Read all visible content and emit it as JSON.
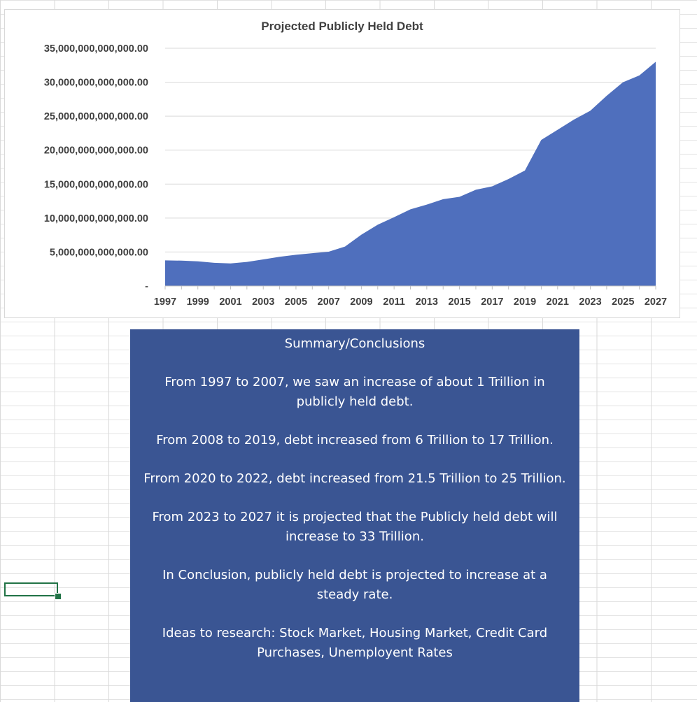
{
  "chart_data": {
    "type": "area",
    "title": "Projected Publicly Held Debt",
    "xlabel": "",
    "ylabel": "",
    "x": [
      1997,
      1998,
      1999,
      2000,
      2001,
      2002,
      2003,
      2004,
      2005,
      2006,
      2007,
      2008,
      2009,
      2010,
      2011,
      2012,
      2013,
      2014,
      2015,
      2016,
      2017,
      2018,
      2019,
      2020,
      2021,
      2022,
      2023,
      2024,
      2025,
      2026,
      2027
    ],
    "x_tick_labels": [
      "1997",
      "1999",
      "2001",
      "2003",
      "2005",
      "2007",
      "2009",
      "2011",
      "2013",
      "2015",
      "2017",
      "2019",
      "2021",
      "2023",
      "2025",
      "2027"
    ],
    "series": [
      {
        "values": [
          3770000000000,
          3730000000000,
          3630000000000,
          3410000000000,
          3320000000000,
          3540000000000,
          3910000000000,
          4300000000000,
          4590000000000,
          4830000000000,
          5040000000000,
          5800000000000,
          7550000000000,
          9020000000000,
          10130000000000,
          11280000000000,
          11980000000000,
          12780000000000,
          13120000000000,
          14170000000000,
          14670000000000,
          15750000000000,
          17000000000000,
          21500000000000,
          23000000000000,
          24500000000000,
          25800000000000,
          28000000000000,
          30000000000000,
          31000000000000,
          33000000000000
        ]
      }
    ],
    "y_tick_labels": [
      "-",
      "5,000,000,000,000.00",
      "10,000,000,000,000.00",
      "15,000,000,000,000.00",
      "20,000,000,000,000.00",
      "25,000,000,000,000.00",
      "30,000,000,000,000.00",
      "35,000,000,000,000.00"
    ],
    "ylim": [
      0,
      35000000000000
    ],
    "grid": true,
    "legend": "none",
    "colors": {
      "area": "#4f6fbd",
      "grid": "#d9d9d9",
      "text": "#404040"
    }
  },
  "summary": {
    "heading": "Summary/Conclusions",
    "paragraphs": [
      "From 1997 to 2007, we saw an increase of about 1 Trillion in publicly held debt.",
      "From 2008 to 2019, debt increased from 6 Trillion to 17 Trillion.",
      "Frrom 2020 to 2022, debt increased from 21.5 Trillion to 25 Trillion.",
      "From 2023 to 2027 it is projected that the Publicly held debt will increase to 33 Trillion.",
      "In Conclusion,  publicly held debt is projected to increase at a steady rate.",
      "Ideas to research: Stock Market, Housing Market, Credit Card Purchases, Unemployent Rates"
    ],
    "colors": {
      "background": "#3a5593",
      "text": "#ffffff"
    }
  },
  "sheet": {
    "colors": {
      "gridline": "#d9d9d9",
      "selection": "#217346"
    }
  }
}
